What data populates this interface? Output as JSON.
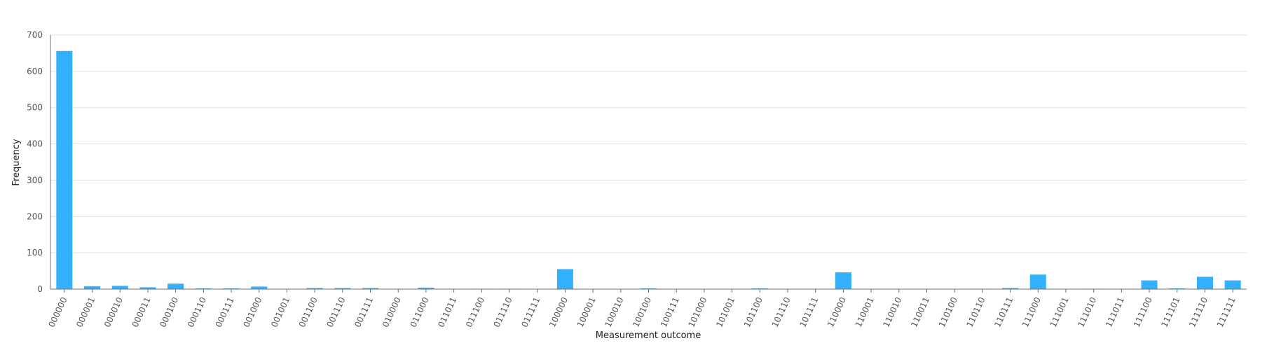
{
  "chart_data": {
    "type": "bar",
    "title": "",
    "xlabel": "Measurement outcome",
    "ylabel": "Frequency",
    "ylim": [
      0,
      700
    ],
    "yticks": [
      0,
      100,
      200,
      300,
      400,
      500,
      600,
      700
    ],
    "grid": true,
    "legend": "none",
    "colors": {
      "bar": "#33B1FF",
      "grid": "#E0E0E0",
      "axis": "#6F6F6F"
    },
    "categories": [
      "000000",
      "000001",
      "000010",
      "000011",
      "000100",
      "000110",
      "000111",
      "001000",
      "001001",
      "001100",
      "001110",
      "001111",
      "010000",
      "011000",
      "011011",
      "011100",
      "011110",
      "011111",
      "100000",
      "100001",
      "100010",
      "100100",
      "100111",
      "101000",
      "101001",
      "101100",
      "101110",
      "101111",
      "110000",
      "110001",
      "110010",
      "110011",
      "110100",
      "110110",
      "110111",
      "111000",
      "111001",
      "111010",
      "111011",
      "111100",
      "111101",
      "111110",
      "111111"
    ],
    "values": [
      656,
      8,
      9,
      5,
      15,
      2,
      2,
      7,
      0,
      3,
      3,
      3,
      0,
      4,
      0,
      1,
      1,
      0,
      55,
      0,
      0,
      2,
      0,
      0,
      0,
      2,
      0,
      0,
      46,
      0,
      0,
      0,
      0,
      1,
      3,
      40,
      0,
      1,
      0,
      24,
      2,
      34,
      24
    ]
  }
}
